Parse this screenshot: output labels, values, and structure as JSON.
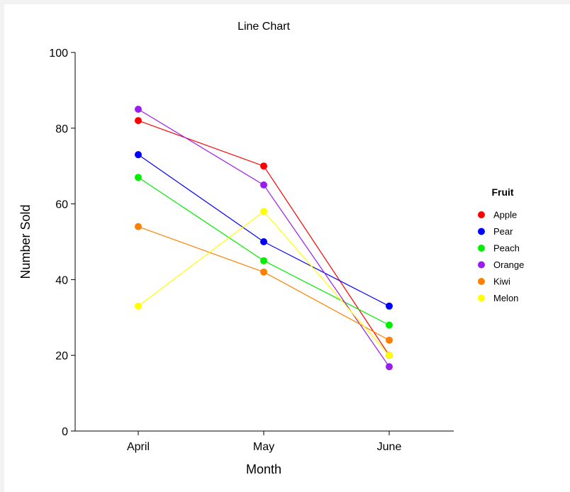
{
  "chart_data": {
    "type": "line",
    "title": "Line Chart",
    "xlabel": "Month",
    "ylabel": "Number Sold",
    "categories": [
      "April",
      "May",
      "June"
    ],
    "ylim": [
      0,
      100
    ],
    "yticks": [
      0,
      20,
      40,
      60,
      80,
      100
    ],
    "grid": false,
    "legend": {
      "title": "Fruit",
      "placement": "right"
    },
    "series": [
      {
        "name": "Apple",
        "color": "#ff0000",
        "values": [
          82,
          70,
          20
        ]
      },
      {
        "name": "Pear",
        "color": "#0000ff",
        "values": [
          73,
          50,
          33
        ]
      },
      {
        "name": "Peach",
        "color": "#00ee00",
        "values": [
          67,
          45,
          28
        ]
      },
      {
        "name": "Orange",
        "color": "#9a1cf0",
        "values": [
          85,
          65,
          17
        ]
      },
      {
        "name": "Kiwi",
        "color": "#ff8000",
        "values": [
          54,
          42,
          24
        ]
      },
      {
        "name": "Melon",
        "color": "#ffff00",
        "values": [
          33,
          58,
          20
        ]
      }
    ]
  }
}
